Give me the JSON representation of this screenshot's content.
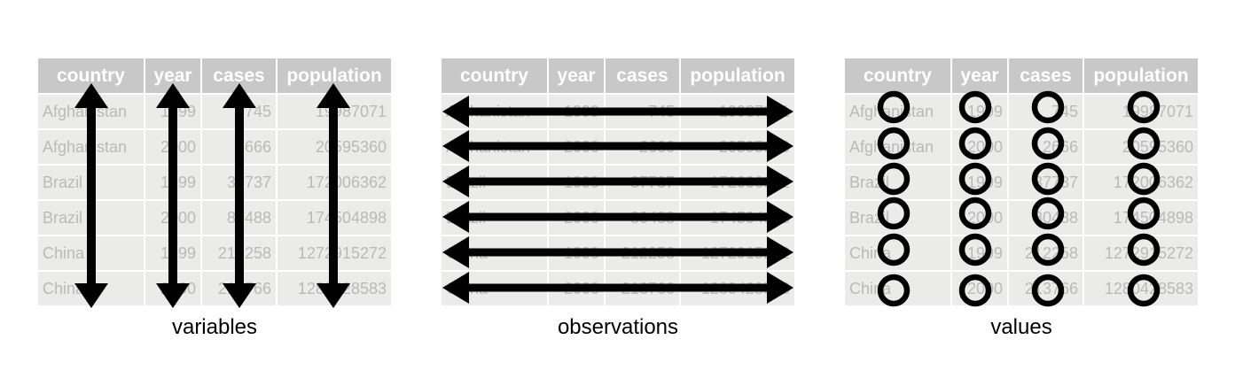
{
  "columns": [
    "country",
    "year",
    "cases",
    "population"
  ],
  "rows": [
    [
      "Afghanistan",
      "1999",
      "745",
      "19987071"
    ],
    [
      "Afghanistan",
      "2000",
      "2666",
      "20595360"
    ],
    [
      "Brazil",
      "1999",
      "37737",
      "172006362"
    ],
    [
      "Brazil",
      "2000",
      "80488",
      "174504898"
    ],
    [
      "China",
      "1999",
      "212258",
      "1272915272"
    ],
    [
      "China",
      "2000",
      "213766",
      "1280428583"
    ]
  ],
  "captions": {
    "variables": "variables",
    "observations": "observations",
    "values": "values"
  },
  "colors": {
    "header_bg": "#c8c8c8",
    "cell_bg": "#ebecea",
    "cell_text": "#b9b9b9",
    "marks": "#000000"
  }
}
